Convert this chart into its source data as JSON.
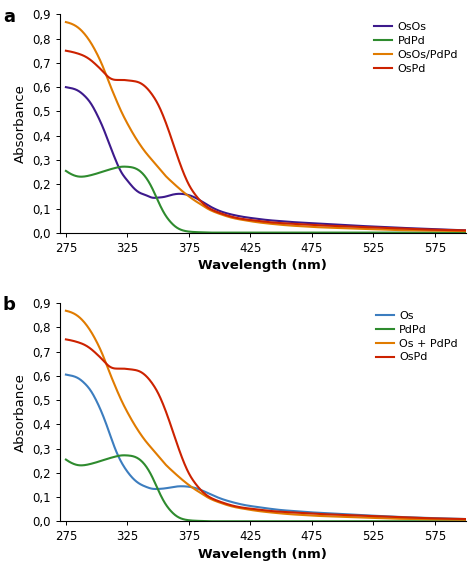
{
  "panel_a": {
    "label": "a",
    "legend_labels": [
      "OsOs",
      "PdPd",
      "OsOs/PdPd",
      "OsPd"
    ],
    "colors": [
      "#3d1a8c",
      "#2e8b2e",
      "#e07b00",
      "#cc2200"
    ],
    "xlabel": "Wavelength (nm)",
    "ylabel": "Absorbance",
    "xlim": [
      270,
      600
    ],
    "ylim": [
      0,
      0.9
    ],
    "yticks": [
      0,
      0.1,
      0.2,
      0.3,
      0.4,
      0.5,
      0.6,
      0.7,
      0.8,
      0.9
    ],
    "xticks": [
      275,
      325,
      375,
      425,
      475,
      525,
      575
    ],
    "OsOs": {
      "x": [
        275,
        280,
        285,
        290,
        295,
        300,
        305,
        310,
        315,
        320,
        325,
        330,
        335,
        340,
        345,
        350,
        355,
        360,
        365,
        370,
        375,
        380,
        390,
        400,
        410,
        420,
        430,
        440,
        450,
        460,
        470,
        480,
        500,
        520,
        540,
        560,
        580,
        600
      ],
      "y": [
        0.6,
        0.595,
        0.585,
        0.565,
        0.535,
        0.49,
        0.435,
        0.37,
        0.305,
        0.25,
        0.215,
        0.185,
        0.165,
        0.155,
        0.145,
        0.145,
        0.148,
        0.155,
        0.16,
        0.16,
        0.155,
        0.145,
        0.115,
        0.09,
        0.075,
        0.065,
        0.058,
        0.052,
        0.048,
        0.044,
        0.041,
        0.038,
        0.032,
        0.027,
        0.022,
        0.018,
        0.014,
        0.01
      ]
    },
    "PdPd": {
      "x": [
        275,
        280,
        285,
        290,
        295,
        300,
        305,
        310,
        315,
        320,
        325,
        330,
        335,
        340,
        345,
        350,
        355,
        360,
        365,
        370,
        375,
        380,
        385,
        390,
        400,
        420,
        440,
        460,
        480,
        500,
        520,
        540,
        560,
        580,
        600
      ],
      "y": [
        0.255,
        0.24,
        0.232,
        0.232,
        0.237,
        0.244,
        0.252,
        0.26,
        0.267,
        0.272,
        0.272,
        0.268,
        0.255,
        0.228,
        0.185,
        0.13,
        0.08,
        0.045,
        0.022,
        0.01,
        0.005,
        0.003,
        0.002,
        0.001,
        0.001,
        0.001,
        0.001,
        0.001,
        0.001,
        0.001,
        0.001,
        0.001,
        0.001,
        0.001,
        0.001
      ]
    },
    "OsOsPdPd": {
      "x": [
        275,
        280,
        285,
        290,
        295,
        300,
        305,
        310,
        315,
        320,
        325,
        330,
        335,
        340,
        345,
        350,
        355,
        360,
        365,
        370,
        375,
        380,
        385,
        390,
        400,
        410,
        420,
        430,
        440,
        450,
        460,
        470,
        480,
        490,
        500,
        510,
        520,
        530,
        540,
        560,
        580,
        600
      ],
      "y": [
        0.868,
        0.86,
        0.845,
        0.82,
        0.785,
        0.74,
        0.685,
        0.62,
        0.558,
        0.5,
        0.45,
        0.405,
        0.365,
        0.33,
        0.3,
        0.27,
        0.24,
        0.215,
        0.192,
        0.17,
        0.15,
        0.132,
        0.116,
        0.1,
        0.078,
        0.062,
        0.052,
        0.044,
        0.038,
        0.033,
        0.029,
        0.026,
        0.023,
        0.021,
        0.019,
        0.017,
        0.015,
        0.014,
        0.012,
        0.01,
        0.008,
        0.007
      ]
    },
    "OsPd": {
      "x": [
        275,
        280,
        285,
        290,
        295,
        300,
        305,
        310,
        315,
        320,
        325,
        330,
        335,
        340,
        345,
        350,
        355,
        360,
        365,
        370,
        375,
        380,
        385,
        390,
        395,
        400,
        410,
        420,
        430,
        440,
        450,
        460,
        470,
        480,
        490,
        500,
        510,
        520,
        530,
        540,
        560,
        580,
        600
      ],
      "y": [
        0.75,
        0.745,
        0.738,
        0.728,
        0.712,
        0.69,
        0.665,
        0.64,
        0.63,
        0.63,
        0.628,
        0.625,
        0.618,
        0.6,
        0.57,
        0.528,
        0.47,
        0.4,
        0.325,
        0.255,
        0.198,
        0.158,
        0.128,
        0.106,
        0.092,
        0.082,
        0.066,
        0.056,
        0.05,
        0.044,
        0.04,
        0.037,
        0.034,
        0.031,
        0.029,
        0.027,
        0.025,
        0.023,
        0.021,
        0.019,
        0.015,
        0.012,
        0.01
      ]
    }
  },
  "panel_b": {
    "label": "b",
    "legend_labels": [
      "Os",
      "PdPd",
      "Os + PdPd",
      "OsPd"
    ],
    "colors": [
      "#3c7dbf",
      "#2e8b2e",
      "#e07b00",
      "#cc2200"
    ],
    "xlabel": "Wavelength (nm)",
    "ylabel": "Absorbance",
    "xlim": [
      270,
      600
    ],
    "ylim": [
      0,
      0.9
    ],
    "yticks": [
      0,
      0.1,
      0.2,
      0.3,
      0.4,
      0.5,
      0.6,
      0.7,
      0.8,
      0.9
    ],
    "xticks": [
      275,
      325,
      375,
      425,
      475,
      525,
      575
    ],
    "Os": {
      "x": [
        275,
        280,
        285,
        290,
        295,
        300,
        305,
        310,
        315,
        320,
        325,
        330,
        335,
        340,
        345,
        350,
        355,
        360,
        365,
        370,
        375,
        380,
        390,
        400,
        410,
        420,
        430,
        440,
        450,
        460,
        470,
        480,
        490,
        500,
        520,
        540,
        560,
        580,
        600
      ],
      "y": [
        0.605,
        0.6,
        0.59,
        0.57,
        0.54,
        0.495,
        0.438,
        0.37,
        0.3,
        0.245,
        0.205,
        0.175,
        0.155,
        0.143,
        0.135,
        0.134,
        0.136,
        0.14,
        0.144,
        0.145,
        0.143,
        0.138,
        0.118,
        0.096,
        0.08,
        0.068,
        0.06,
        0.053,
        0.047,
        0.043,
        0.039,
        0.036,
        0.033,
        0.03,
        0.025,
        0.02,
        0.016,
        0.013,
        0.01
      ]
    },
    "PdPd": {
      "x": [
        275,
        280,
        285,
        290,
        295,
        300,
        305,
        310,
        315,
        320,
        325,
        330,
        335,
        340,
        345,
        350,
        355,
        360,
        365,
        370,
        375,
        380,
        385,
        390,
        400,
        420,
        440,
        460,
        480,
        500,
        520,
        540,
        560,
        580,
        600
      ],
      "y": [
        0.255,
        0.24,
        0.232,
        0.232,
        0.237,
        0.244,
        0.252,
        0.26,
        0.267,
        0.272,
        0.272,
        0.268,
        0.255,
        0.228,
        0.185,
        0.13,
        0.08,
        0.045,
        0.022,
        0.01,
        0.005,
        0.003,
        0.002,
        0.001,
        0.001,
        0.001,
        0.001,
        0.001,
        0.001,
        0.001,
        0.001,
        0.001,
        0.001,
        0.001,
        0.001
      ]
    },
    "OsPdPd": {
      "x": [
        275,
        280,
        285,
        290,
        295,
        300,
        305,
        310,
        315,
        320,
        325,
        330,
        335,
        340,
        345,
        350,
        355,
        360,
        365,
        370,
        375,
        380,
        385,
        390,
        400,
        410,
        420,
        430,
        440,
        450,
        460,
        470,
        480,
        490,
        500,
        510,
        520,
        530,
        540,
        560,
        580,
        600
      ],
      "y": [
        0.868,
        0.86,
        0.845,
        0.82,
        0.785,
        0.74,
        0.685,
        0.62,
        0.558,
        0.5,
        0.45,
        0.405,
        0.365,
        0.33,
        0.3,
        0.27,
        0.24,
        0.215,
        0.192,
        0.17,
        0.15,
        0.132,
        0.116,
        0.1,
        0.078,
        0.062,
        0.052,
        0.044,
        0.038,
        0.033,
        0.029,
        0.026,
        0.023,
        0.021,
        0.019,
        0.017,
        0.015,
        0.014,
        0.012,
        0.01,
        0.008,
        0.007
      ]
    },
    "OsPd": {
      "x": [
        275,
        280,
        285,
        290,
        295,
        300,
        305,
        310,
        315,
        320,
        325,
        330,
        335,
        340,
        345,
        350,
        355,
        360,
        365,
        370,
        375,
        380,
        385,
        390,
        395,
        400,
        410,
        420,
        430,
        440,
        450,
        460,
        470,
        480,
        490,
        500,
        510,
        520,
        530,
        540,
        560,
        580,
        600
      ],
      "y": [
        0.75,
        0.745,
        0.738,
        0.728,
        0.712,
        0.69,
        0.665,
        0.64,
        0.63,
        0.63,
        0.628,
        0.625,
        0.618,
        0.6,
        0.57,
        0.528,
        0.47,
        0.4,
        0.325,
        0.255,
        0.198,
        0.158,
        0.128,
        0.106,
        0.092,
        0.082,
        0.066,
        0.056,
        0.05,
        0.044,
        0.04,
        0.037,
        0.034,
        0.031,
        0.029,
        0.027,
        0.025,
        0.023,
        0.021,
        0.019,
        0.015,
        0.012,
        0.01
      ]
    }
  },
  "figsize": [
    4.74,
    5.69
  ],
  "dpi": 100
}
